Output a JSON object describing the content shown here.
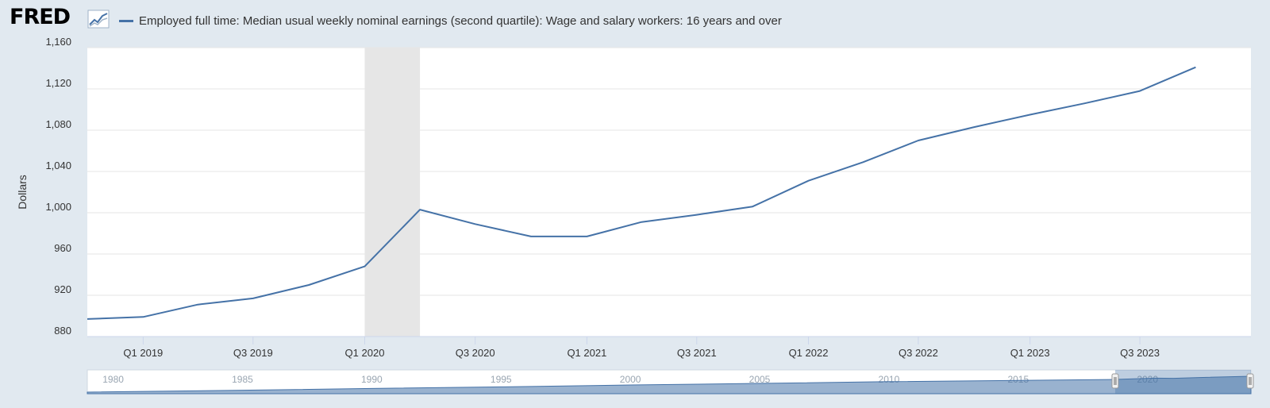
{
  "header": {
    "logo_text": "FRED",
    "logo_icon": "line-chart-icon"
  },
  "chart_data": {
    "type": "line",
    "title": "",
    "legend_position": "top-left",
    "xlabel": "",
    "ylabel": "Dollars",
    "series": [
      {
        "name": "Employed full time: Median usual weekly nominal earnings (second quartile): Wage and salary workers: 16 years and over",
        "color": "#4572a7",
        "x": [
          "2018-10-01",
          "2019-01-01",
          "2019-04-01",
          "2019-07-01",
          "2019-10-01",
          "2020-01-01",
          "2020-04-01",
          "2020-07-01",
          "2020-10-01",
          "2021-01-01",
          "2021-04-01",
          "2021-07-01",
          "2021-10-01",
          "2022-01-01",
          "2022-04-01",
          "2022-07-01",
          "2022-10-01",
          "2023-01-01",
          "2023-04-01",
          "2023-07-01",
          "2023-10-01"
        ],
        "values": [
          897,
          899,
          911,
          917,
          930,
          948,
          1003,
          989,
          977,
          977,
          991,
          998,
          1006,
          1031,
          1049,
          1070,
          1083,
          1095,
          1106,
          1118,
          1141
        ]
      }
    ],
    "recession_bands": [
      [
        "2020-01-01",
        "2020-04-01"
      ]
    ],
    "x_range": [
      "2018-10-01",
      "2023-12-31"
    ],
    "x_ticks": [
      {
        "date": "2019-01-01",
        "label": "Q1 2019"
      },
      {
        "date": "2019-07-01",
        "label": "Q3 2019"
      },
      {
        "date": "2020-01-01",
        "label": "Q1 2020"
      },
      {
        "date": "2020-07-01",
        "label": "Q3 2020"
      },
      {
        "date": "2021-01-01",
        "label": "Q1 2021"
      },
      {
        "date": "2021-07-01",
        "label": "Q3 2021"
      },
      {
        "date": "2022-01-01",
        "label": "Q1 2022"
      },
      {
        "date": "2022-07-01",
        "label": "Q3 2022"
      },
      {
        "date": "2023-01-01",
        "label": "Q1 2023"
      },
      {
        "date": "2023-07-01",
        "label": "Q3 2023"
      }
    ],
    "ylim": [
      880,
      1160
    ],
    "y_ticks": [
      880,
      920,
      960,
      1000,
      1040,
      1080,
      1120,
      1160
    ],
    "y_tick_labels": [
      "880",
      "920",
      "960",
      "1,000",
      "1,040",
      "1,080",
      "1,120",
      "1,160"
    ],
    "grid": true
  },
  "navigator": {
    "labels": [
      "1980",
      "1985",
      "1990",
      "1995",
      "2000",
      "2005",
      "2010",
      "2015",
      "2020"
    ],
    "range": [
      1979,
      2024
    ],
    "selected_range": [
      2018.75,
      2024
    ],
    "outline_values": [
      [
        1979,
        0.0
      ],
      [
        1985,
        0.12
      ],
      [
        1990,
        0.23
      ],
      [
        1995,
        0.33
      ],
      [
        2000,
        0.45
      ],
      [
        2005,
        0.55
      ],
      [
        2010,
        0.66
      ],
      [
        2015,
        0.74
      ],
      [
        2018.75,
        0.8
      ],
      [
        2020.3,
        0.88
      ],
      [
        2021,
        0.87
      ],
      [
        2022,
        0.92
      ],
      [
        2024,
        1.0
      ]
    ]
  }
}
